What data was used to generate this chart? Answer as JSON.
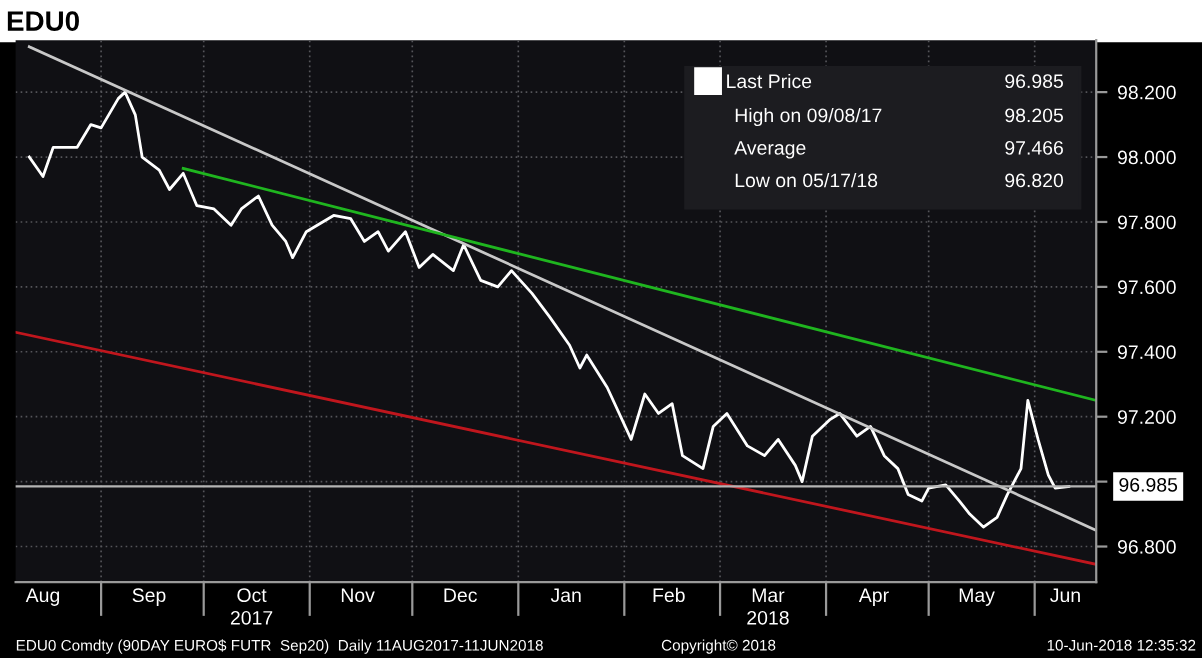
{
  "chart_data": {
    "type": "line",
    "title": "EDU0",
    "xlim": [
      "2017-08-07",
      "2018-06-19"
    ],
    "xticks": [
      {
        "value": "2017-09-01",
        "label": null
      },
      {
        "value": "2017-10-01",
        "label": null
      },
      {
        "value": "2017-11-01",
        "label": null
      },
      {
        "value": "2017-12-01",
        "label": null
      },
      {
        "value": "2018-01-01",
        "label": null
      },
      {
        "value": "2018-02-01",
        "label": null
      },
      {
        "value": "2018-03-01",
        "label": null
      },
      {
        "value": "2018-04-01",
        "label": null
      },
      {
        "value": "2018-05-01",
        "label": null
      },
      {
        "value": "2018-06-01",
        "label": null
      },
      {
        "value": "2017-08-15",
        "label": "Aug"
      },
      {
        "value": "2017-09-15",
        "label": "Sep"
      },
      {
        "value": "2017-10-15",
        "label": "Oct"
      },
      {
        "value": "2017-11-15",
        "label": "Nov"
      },
      {
        "value": "2017-12-15",
        "label": "Dec"
      },
      {
        "value": "2018-01-15",
        "label": "Jan"
      },
      {
        "value": "2018-02-14",
        "label": "Feb"
      },
      {
        "value": "2018-03-15",
        "label": "Mar"
      },
      {
        "value": "2018-04-15",
        "label": "Apr"
      },
      {
        "value": "2018-05-15",
        "label": "May"
      },
      {
        "value": "2018-06-10",
        "label": "Jun"
      }
    ],
    "ylim": [
      96.69,
      98.36
    ],
    "yticks": [
      {
        "value": 96.8,
        "label": "96.800"
      },
      {
        "value": 97.0,
        "label": null
      },
      {
        "value": 97.2,
        "label": "97.200"
      },
      {
        "value": 97.4,
        "label": "97.400"
      },
      {
        "value": 97.6,
        "label": "97.600"
      },
      {
        "value": 97.8,
        "label": "97.800"
      },
      {
        "value": 98.0,
        "label": "98.000"
      },
      {
        "value": 98.2,
        "label": "98.200"
      }
    ],
    "grid": true,
    "legend": "top right",
    "marker": "none",
    "line_style": "solid",
    "series": [
      {
        "name": "Last Price",
        "color": "#ffffff",
        "x": [
          "2017-08-11",
          "2017-08-15",
          "2017-08-18",
          "2017-08-25",
          "2017-08-29",
          "2017-09-01",
          "2017-09-06",
          "2017-09-08",
          "2017-09-11",
          "2017-09-13",
          "2017-09-18",
          "2017-09-21",
          "2017-09-25",
          "2017-09-29",
          "2017-10-04",
          "2017-10-09",
          "2017-10-12",
          "2017-10-17",
          "2017-10-21",
          "2017-10-25",
          "2017-10-27",
          "2017-10-31",
          "2017-11-08",
          "2017-11-13",
          "2017-11-17",
          "2017-11-21",
          "2017-11-24",
          "2017-11-29",
          "2017-12-03",
          "2017-12-07",
          "2017-12-13",
          "2017-12-16",
          "2017-12-21",
          "2017-12-26",
          "2017-12-30",
          "2018-01-05",
          "2018-01-10",
          "2018-01-16",
          "2018-01-19",
          "2018-01-21",
          "2018-01-27",
          "2018-02-03",
          "2018-02-07",
          "2018-02-11",
          "2018-02-15",
          "2018-02-18",
          "2018-02-24",
          "2018-02-27",
          "2018-03-03",
          "2018-03-09",
          "2018-03-14",
          "2018-03-18",
          "2018-03-23",
          "2018-03-25",
          "2018-03-28",
          "2018-04-02",
          "2018-04-05",
          "2018-04-10",
          "2018-04-14",
          "2018-04-18",
          "2018-04-22",
          "2018-04-25",
          "2018-04-29",
          "2018-05-01",
          "2018-05-06",
          "2018-05-10",
          "2018-05-13",
          "2018-05-17",
          "2018-05-21",
          "2018-05-24",
          "2018-05-28",
          "2018-05-30",
          "2018-06-02",
          "2018-06-05",
          "2018-06-07",
          "2018-06-11"
        ],
        "values": [
          98.0,
          97.94,
          98.03,
          98.03,
          98.1,
          98.09,
          98.18,
          98.2,
          98.13,
          98.0,
          97.96,
          97.9,
          97.95,
          97.85,
          97.84,
          97.79,
          97.84,
          97.88,
          97.79,
          97.74,
          97.69,
          97.77,
          97.82,
          97.81,
          97.74,
          97.77,
          97.71,
          97.77,
          97.66,
          97.7,
          97.65,
          97.73,
          97.62,
          97.6,
          97.65,
          97.58,
          97.51,
          97.42,
          97.35,
          97.39,
          97.29,
          97.13,
          97.27,
          97.21,
          97.24,
          97.08,
          97.04,
          97.17,
          97.21,
          97.11,
          97.08,
          97.13,
          97.05,
          97.0,
          97.14,
          97.19,
          97.21,
          97.14,
          97.17,
          97.08,
          97.04,
          96.96,
          96.94,
          96.98,
          96.99,
          96.94,
          96.9,
          96.86,
          96.89,
          96.96,
          97.04,
          97.25,
          97.13,
          97.02,
          96.98,
          96.985
        ]
      },
      {
        "color": "#c8c8c8",
        "x": [
          "2017-08-11",
          "2018-06-19"
        ],
        "values": [
          98.34,
          96.85
        ]
      },
      {
        "color": "#1fb51f",
        "x": [
          "2017-09-25",
          "2018-06-19"
        ],
        "values": [
          97.965,
          97.25
        ]
      },
      {
        "color": "#c0161d",
        "x": [
          "2017-08-07",
          "2018-06-19"
        ],
        "values": [
          97.46,
          96.745
        ]
      }
    ],
    "ref_lines": [
      {
        "axis": "y",
        "value": 96.985,
        "label": "96.985",
        "color": "#b4b4b4"
      }
    ],
    "annotations": [
      "96.985",
      "High on 09/08/17",
      "98.205",
      "Average",
      "97.466",
      "Low on 05/17/18",
      "96.820",
      "2017",
      "2018",
      "EDU0 Comdty (90DAY EURO$ FUTR  Sep20)  Daily 11AUG2017-11JUN2018",
      "Copyright© 2018",
      "10-Jun-2018 12:35:32"
    ]
  }
}
